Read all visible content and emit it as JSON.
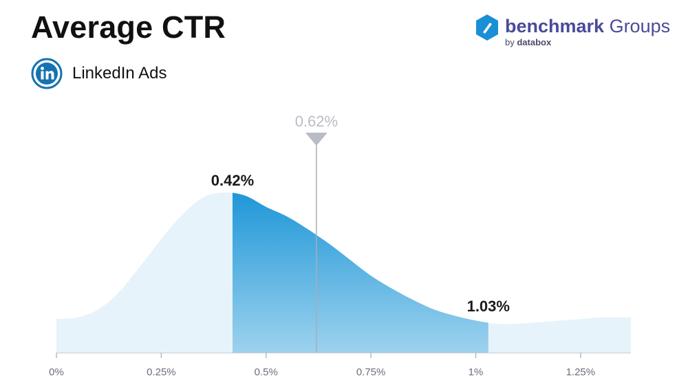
{
  "header": {
    "title": "Average CTR",
    "subtitle": "LinkedIn Ads"
  },
  "brand": {
    "main_bold": "benchmark",
    "main_light": " Groups",
    "sub_by": "by ",
    "sub_name": "databox"
  },
  "colors": {
    "range_fill_top": "#1f97d8",
    "range_fill_bottom": "#9dd2ee",
    "curve_fill": "#e6f3fb",
    "median_marker": "#b8bcc4",
    "linkedin": "#1473b1"
  },
  "chart_data": {
    "type": "area",
    "x_unit": "percent",
    "xlim": [
      0,
      1.37
    ],
    "x_ticks": [
      0,
      0.25,
      0.5,
      0.75,
      1,
      1.25
    ],
    "x_tick_labels": [
      "0%",
      "0.25%",
      "0.5%",
      "0.75%",
      "1%",
      "1.25%"
    ],
    "grid": false,
    "density_curve": {
      "x": [
        0,
        0.05,
        0.1,
        0.15,
        0.2,
        0.25,
        0.3,
        0.35,
        0.4,
        0.45,
        0.5,
        0.55,
        0.6,
        0.65,
        0.7,
        0.75,
        0.8,
        0.85,
        0.9,
        0.95,
        1.0,
        1.05,
        1.1,
        1.15,
        1.2,
        1.25,
        1.3,
        1.37
      ],
      "y": [
        0.21,
        0.22,
        0.27,
        0.38,
        0.54,
        0.71,
        0.86,
        0.97,
        1.0,
        0.98,
        0.91,
        0.85,
        0.77,
        0.68,
        0.58,
        0.48,
        0.4,
        0.33,
        0.27,
        0.23,
        0.2,
        0.18,
        0.18,
        0.19,
        0.2,
        0.21,
        0.22,
        0.22
      ]
    },
    "range": {
      "low": 0.42,
      "high": 1.03,
      "low_label": "0.42%",
      "high_label": "1.03%"
    },
    "median": {
      "value": 0.62,
      "label": "0.62%"
    }
  }
}
